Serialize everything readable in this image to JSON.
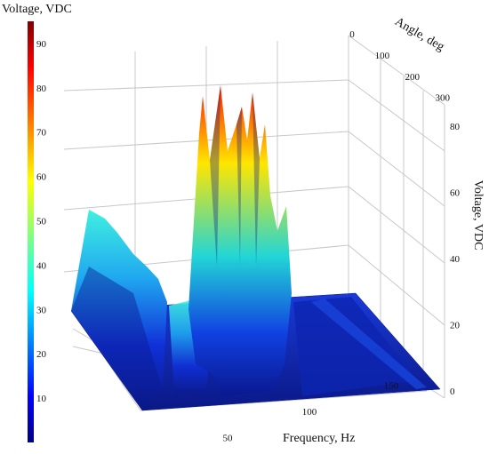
{
  "chart_data": {
    "type": "surface3d",
    "title": "",
    "colorbar": {
      "label": "Voltage, VDC",
      "ticks": [
        10,
        20,
        30,
        40,
        50,
        60,
        70,
        80,
        90
      ],
      "range": [
        0,
        95
      ],
      "colormap": "jet"
    },
    "axes": {
      "x": {
        "label": "Frequency, Hz",
        "ticks": [
          50,
          100,
          150
        ],
        "range": [
          0,
          200
        ]
      },
      "y": {
        "label": "Angle, deg",
        "ticks": [
          0,
          100,
          200,
          300
        ],
        "range": [
          0,
          360
        ]
      },
      "z": {
        "label": "Voltage, VDC",
        "ticks": [
          0,
          20,
          40,
          60,
          80
        ],
        "range": [
          0,
          95
        ]
      }
    },
    "grid": true,
    "peaks": [
      {
        "frequency": 8,
        "voltage": 51
      },
      {
        "frequency": 45,
        "voltage": 27
      },
      {
        "frequency": 60,
        "voltage": 88
      },
      {
        "frequency": 68,
        "voltage": 94
      },
      {
        "frequency": 76,
        "voltage": 86
      },
      {
        "frequency": 84,
        "voltage": 82
      },
      {
        "frequency": 95,
        "voltage": 60
      },
      {
        "frequency": 108,
        "voltage": 12
      },
      {
        "frequency": 170,
        "voltage": 3
      }
    ]
  }
}
